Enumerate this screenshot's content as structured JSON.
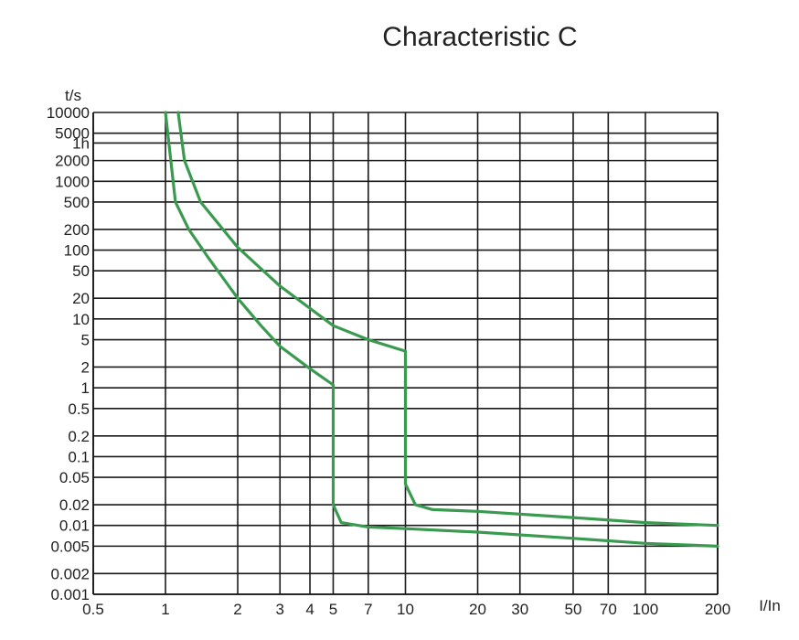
{
  "chart_data": {
    "type": "line",
    "title": "Characteristic C",
    "xlabel": "I/In",
    "ylabel": "t/s",
    "x_scale": "log",
    "y_scale": "log",
    "xlim": [
      0.5,
      200
    ],
    "ylim": [
      0.001,
      10000
    ],
    "grid": true,
    "x_ticks": [
      {
        "value": 0.5,
        "label": "0.5"
      },
      {
        "value": 1,
        "label": "1"
      },
      {
        "value": 2,
        "label": "2"
      },
      {
        "value": 3,
        "label": "3"
      },
      {
        "value": 4,
        "label": "4"
      },
      {
        "value": 5,
        "label": "5"
      },
      {
        "value": 7,
        "label": "7"
      },
      {
        "value": 10,
        "label": "10"
      },
      {
        "value": 20,
        "label": "20"
      },
      {
        "value": 30,
        "label": "30"
      },
      {
        "value": 50,
        "label": "50"
      },
      {
        "value": 70,
        "label": "70"
      },
      {
        "value": 100,
        "label": "100"
      },
      {
        "value": 200,
        "label": "200"
      }
    ],
    "y_ticks": [
      {
        "value": 10000,
        "label": "10000"
      },
      {
        "value": 5000,
        "label": "5000"
      },
      {
        "value": 3600,
        "label": "1h"
      },
      {
        "value": 2000,
        "label": "2000"
      },
      {
        "value": 1000,
        "label": "1000"
      },
      {
        "value": 500,
        "label": "500"
      },
      {
        "value": 200,
        "label": "200"
      },
      {
        "value": 100,
        "label": "100"
      },
      {
        "value": 50,
        "label": "50"
      },
      {
        "value": 20,
        "label": "20"
      },
      {
        "value": 10,
        "label": "10"
      },
      {
        "value": 5,
        "label": "5"
      },
      {
        "value": 2,
        "label": "2"
      },
      {
        "value": 1,
        "label": "1"
      },
      {
        "value": 0.5,
        "label": "0.5"
      },
      {
        "value": 0.2,
        "label": "0.2"
      },
      {
        "value": 0.1,
        "label": "0.1"
      },
      {
        "value": 0.05,
        "label": "0.05"
      },
      {
        "value": 0.02,
        "label": "0.02"
      },
      {
        "value": 0.01,
        "label": "0.01"
      },
      {
        "value": 0.005,
        "label": "0.005"
      },
      {
        "value": 0.002,
        "label": "0.002"
      },
      {
        "value": 0.001,
        "label": "0.001"
      }
    ],
    "series_color": "#3a9a4f",
    "series": [
      {
        "points": [
          [
            1.0,
            10000
          ],
          [
            1.1,
            500
          ],
          [
            1.25,
            200
          ],
          [
            1.5,
            80
          ],
          [
            2.0,
            20
          ],
          [
            2.5,
            8
          ],
          [
            3.0,
            4
          ],
          [
            4.0,
            1.9
          ],
          [
            5.0,
            1.1
          ],
          [
            5.0,
            0.02
          ],
          [
            5.4,
            0.011
          ],
          [
            7.0,
            0.0095
          ],
          [
            10.0,
            0.009
          ],
          [
            20.0,
            0.008
          ],
          [
            50.0,
            0.0065
          ],
          [
            100.0,
            0.0055
          ],
          [
            200.0,
            0.005
          ]
        ]
      },
      {
        "points": [
          [
            1.13,
            10000
          ],
          [
            1.2,
            2000
          ],
          [
            1.4,
            500
          ],
          [
            2.0,
            110
          ],
          [
            3.0,
            30
          ],
          [
            5.0,
            8
          ],
          [
            7.0,
            5
          ],
          [
            10.0,
            3.4
          ],
          [
            10.0,
            0.04
          ],
          [
            11.0,
            0.02
          ],
          [
            13.0,
            0.017
          ],
          [
            20.0,
            0.016
          ],
          [
            50.0,
            0.013
          ],
          [
            100.0,
            0.011
          ],
          [
            200.0,
            0.01
          ]
        ]
      }
    ]
  }
}
